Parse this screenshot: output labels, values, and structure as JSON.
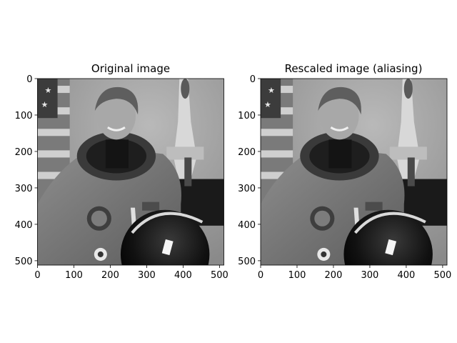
{
  "chart_data": [
    {
      "type": "image",
      "title": "Original image",
      "colormap": "gray",
      "xlim": [
        0,
        512
      ],
      "ylim": [
        512,
        0
      ],
      "xticks": [
        0,
        100,
        200,
        300,
        400,
        500
      ],
      "yticks": [
        0,
        100,
        200,
        300,
        400,
        500
      ],
      "content": "grayscale photograph of an astronaut"
    },
    {
      "type": "image",
      "title": "Rescaled image (aliasing)",
      "colormap": "gray",
      "xlim": [
        0,
        512
      ],
      "ylim": [
        512,
        0
      ],
      "xticks": [
        0,
        100,
        200,
        300,
        400,
        500
      ],
      "yticks": [
        0,
        100,
        200,
        300,
        400,
        500
      ],
      "content": "grayscale photograph of an astronaut"
    }
  ]
}
